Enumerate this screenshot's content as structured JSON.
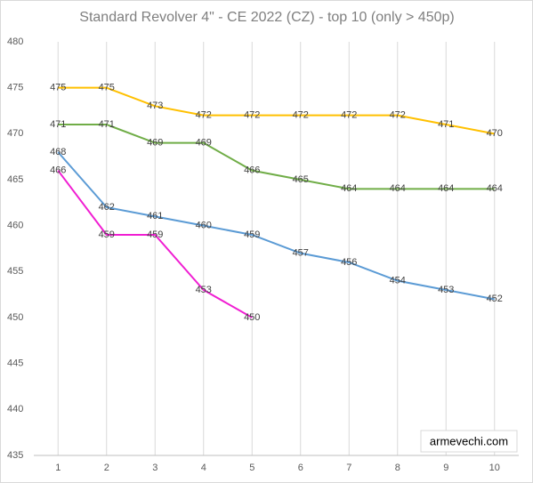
{
  "chart_data": {
    "type": "line",
    "title": "Standard Revolver 4\" - CE 2022 (CZ) - top 10 (only > 450p)",
    "annotation": "armevechi.com",
    "categories": [
      "1",
      "2",
      "3",
      "4",
      "5",
      "6",
      "7",
      "8",
      "9",
      "10"
    ],
    "series": [
      {
        "color": "#ffc000",
        "values": [
          475,
          475,
          473,
          472,
          472,
          472,
          472,
          472,
          471,
          470
        ]
      },
      {
        "color": "#70ad47",
        "values": [
          471,
          471,
          469,
          469,
          466,
          465,
          464,
          464,
          464,
          464
        ]
      },
      {
        "color": "#5b9bd5",
        "values": [
          468,
          462,
          461,
          460,
          459,
          457,
          456,
          454,
          453,
          452
        ]
      },
      {
        "color": "#f01ed2",
        "values": [
          466,
          459,
          459,
          453,
          450,
          null,
          null,
          null,
          null,
          null
        ]
      }
    ],
    "ylim": [
      435,
      480
    ],
    "yticks": [
      435,
      440,
      445,
      450,
      455,
      460,
      465,
      470,
      475,
      480
    ],
    "xgrid": true
  }
}
